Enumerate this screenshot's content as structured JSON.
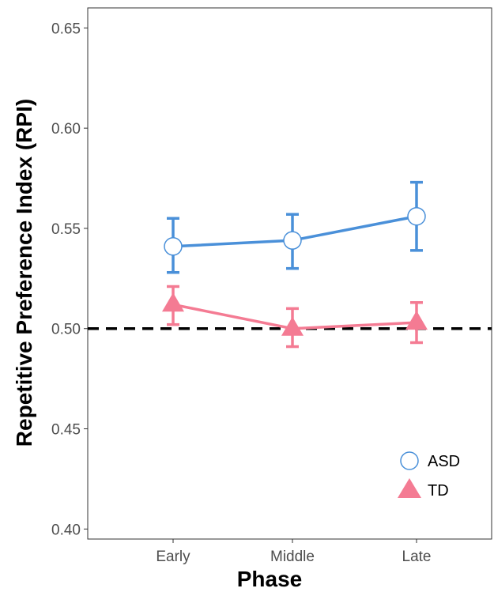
{
  "chart_data": {
    "type": "line",
    "xlabel": "Phase",
    "ylabel": "Repetitive Preference Index (RPI)",
    "categories": [
      "Early",
      "Middle",
      "Late"
    ],
    "ylim": [
      0.395,
      0.66
    ],
    "yticks": [
      0.4,
      0.45,
      0.5,
      0.55,
      0.6,
      0.65
    ],
    "ytick_labels": [
      "0.40",
      "0.45",
      "0.50",
      "0.55",
      "0.60",
      "0.65"
    ],
    "reference_line": {
      "y": 0.5,
      "style": "dashed",
      "color": "#000000"
    },
    "grid": false,
    "legend_position": "bottom-right",
    "series": [
      {
        "name": "ASD",
        "color": "#4a90d9",
        "marker": "open-circle",
        "values": [
          0.541,
          0.544,
          0.556
        ],
        "error_low": [
          0.528,
          0.53,
          0.539
        ],
        "error_high": [
          0.555,
          0.557,
          0.573
        ]
      },
      {
        "name": "TD",
        "color": "#f47b93",
        "marker": "filled-triangle",
        "values": [
          0.512,
          0.5,
          0.503
        ],
        "error_low": [
          0.502,
          0.491,
          0.493
        ],
        "error_high": [
          0.521,
          0.51,
          0.513
        ]
      }
    ]
  }
}
